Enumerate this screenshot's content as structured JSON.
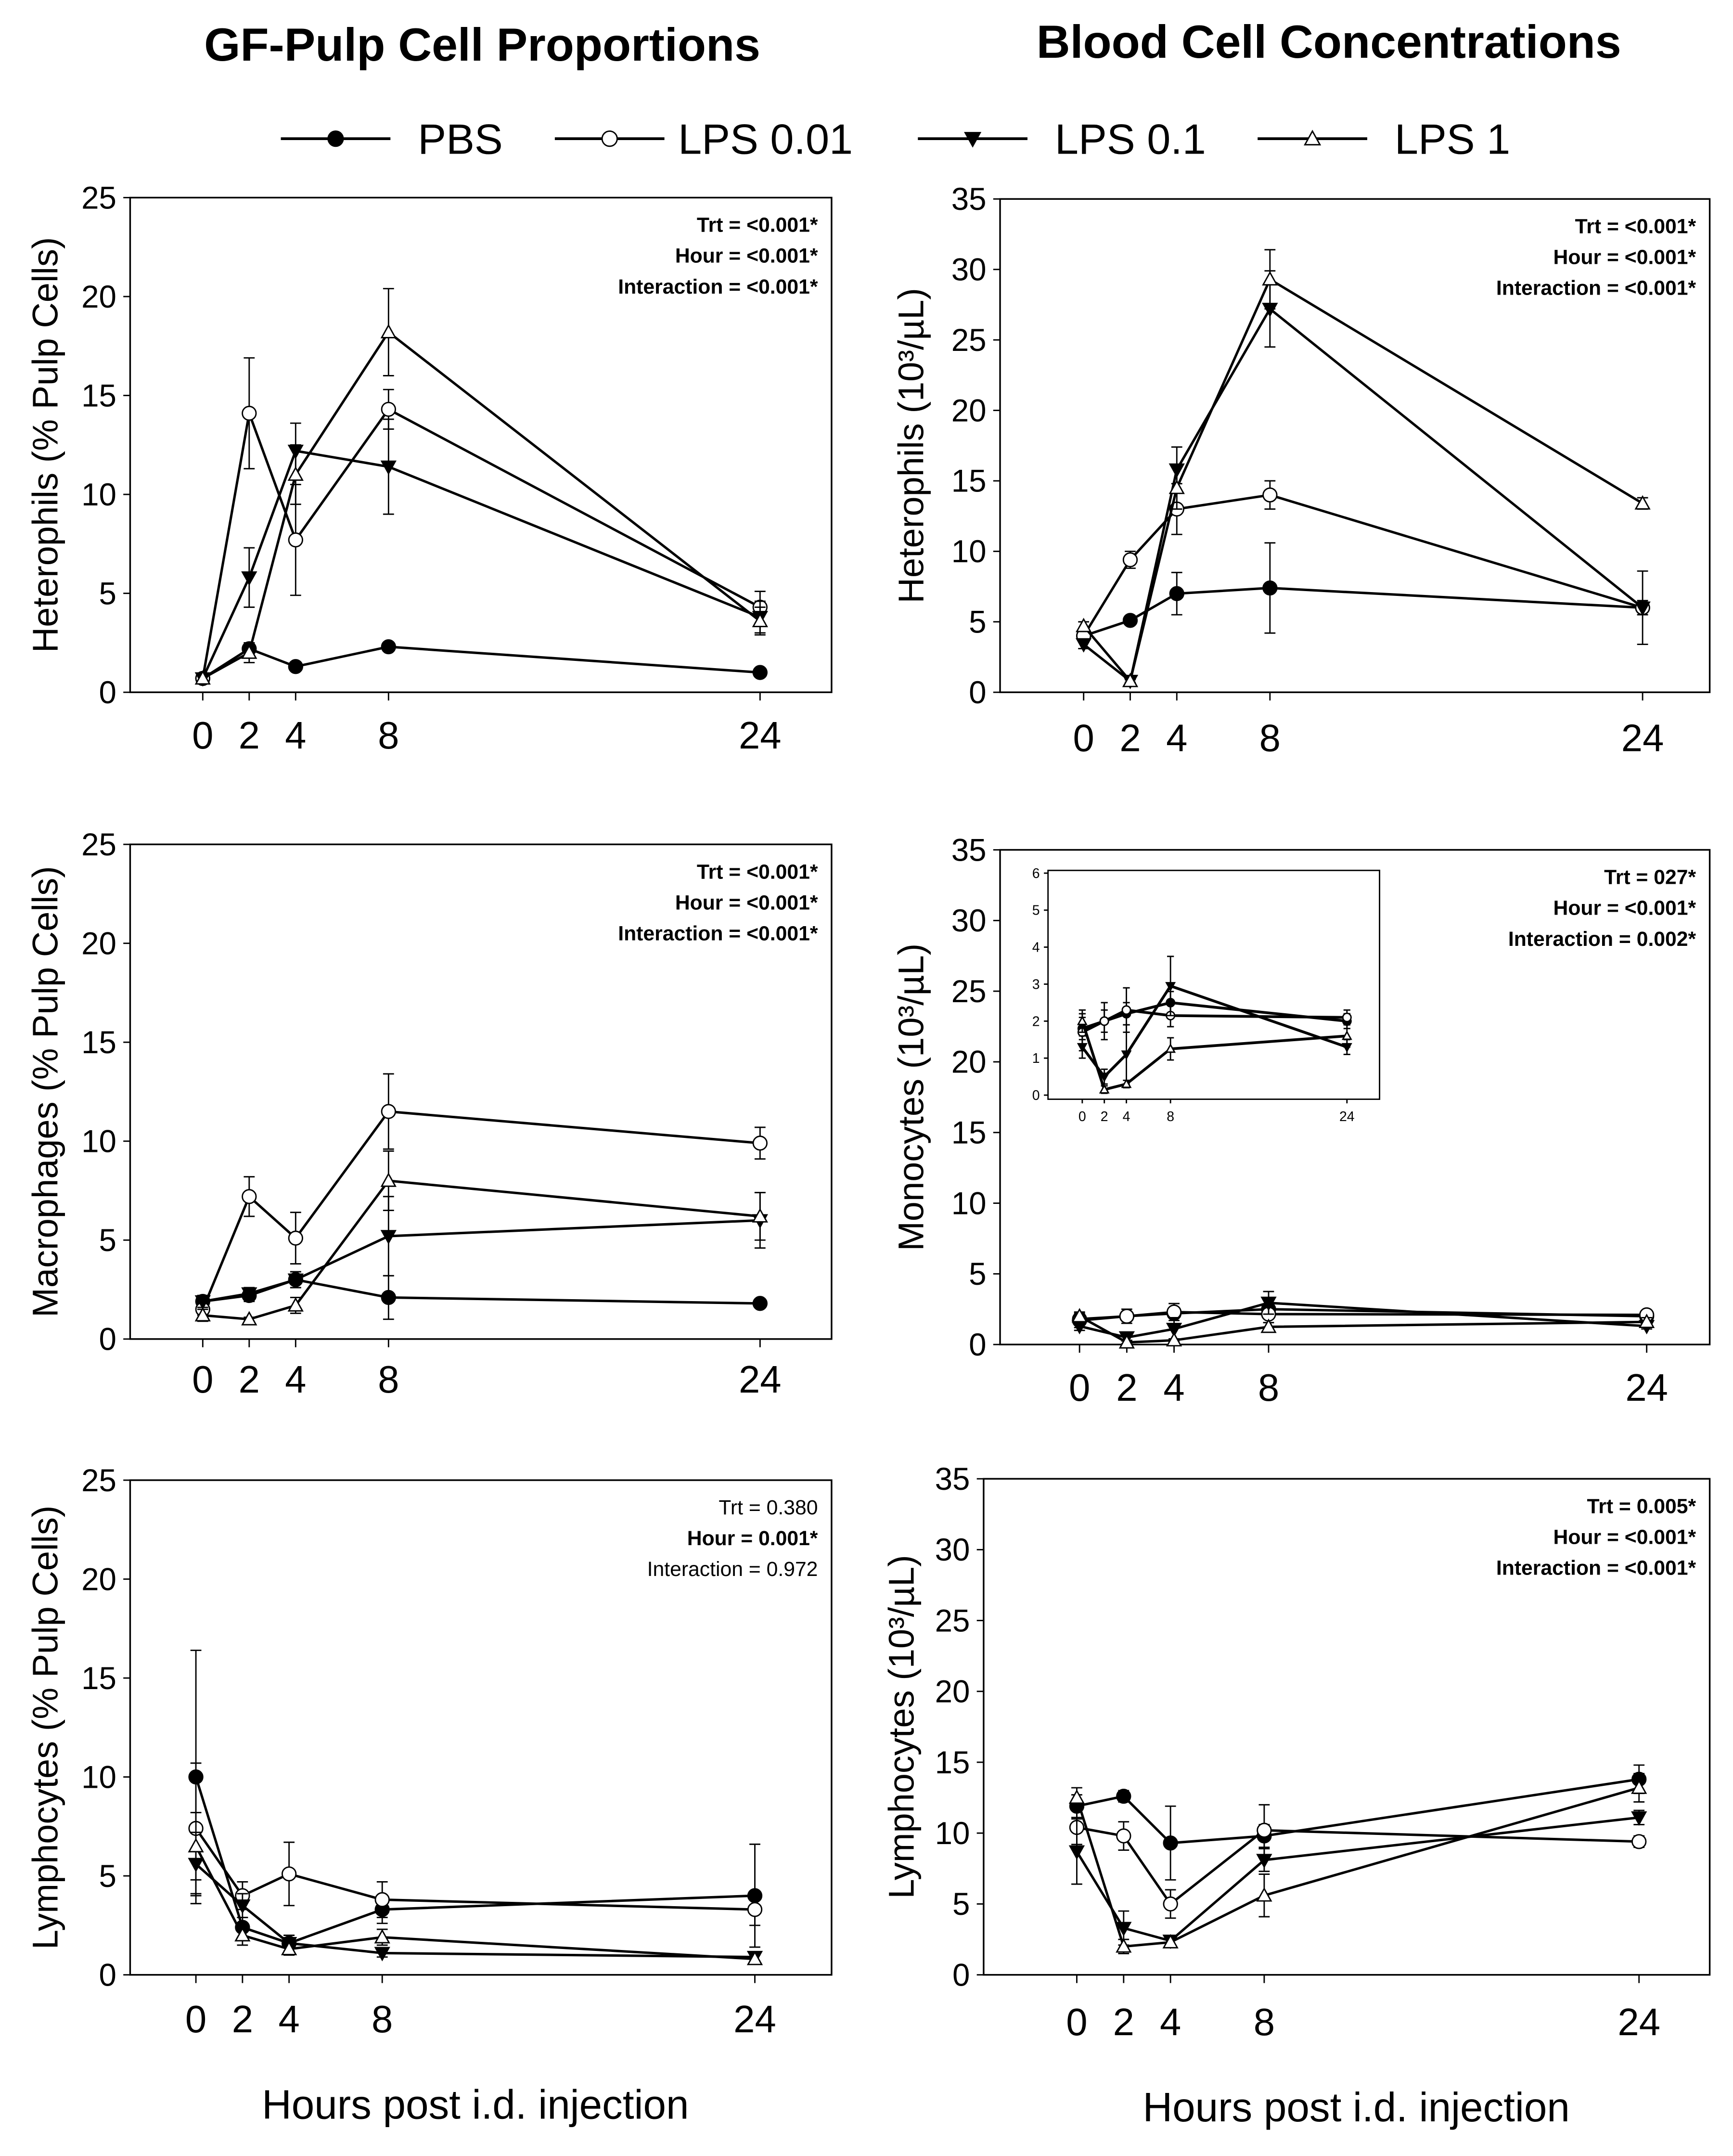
{
  "titles": [
    "GF-Pulp Cell Proportions",
    "Blood Cell Concentrations"
  ],
  "legend": [
    {
      "name": "PBS",
      "marker": "circle-filled"
    },
    {
      "name": "LPS 0.01",
      "marker": "circle-open"
    },
    {
      "name": "LPS 0.1",
      "marker": "triangle-down-filled"
    },
    {
      "name": "LPS 1",
      "marker": "triangle-up-open"
    }
  ],
  "xlabel": "Hours post i.d. injection",
  "chart_data": [
    {
      "type": "line",
      "ylabel": "Heterophils (% Pulp Cells)",
      "ylim": [
        0,
        25
      ],
      "yticks": [
        0,
        5,
        10,
        15,
        20,
        25
      ],
      "x": [
        0,
        2,
        4,
        8,
        24
      ],
      "stats": [
        {
          "text": "Trt = <0.001*",
          "sig": true
        },
        {
          "text": "Hour = <0.001*",
          "sig": true
        },
        {
          "text": "Interaction = <0.001*",
          "sig": true
        }
      ],
      "series": [
        {
          "name": "PBS",
          "values": [
            0.7,
            2.2,
            1.3,
            2.3,
            1.0
          ],
          "err": [
            0.1,
            0.3,
            0.2,
            0.2,
            0.2
          ]
        },
        {
          "name": "LPS 0.01",
          "values": [
            0.7,
            14.1,
            7.7,
            14.3,
            4.3
          ],
          "err": [
            0.1,
            2.8,
            2.8,
            1.0,
            0.8
          ]
        },
        {
          "name": "LPS 0.1",
          "values": [
            0.7,
            5.8,
            12.2,
            11.4,
            3.8
          ],
          "err": [
            0.1,
            1.5,
            1.4,
            2.4,
            0.8
          ]
        },
        {
          "name": "LPS 1",
          "values": [
            0.7,
            2.0,
            11.0,
            18.2,
            3.6
          ],
          "err": [
            0.1,
            0.5,
            1.5,
            2.2,
            0.7
          ]
        }
      ]
    },
    {
      "type": "line",
      "ylabel": "Heterophils (10³/µL)",
      "ylim": [
        0,
        35
      ],
      "yticks": [
        0,
        5,
        10,
        15,
        20,
        25,
        30,
        35
      ],
      "x": [
        0,
        2,
        4,
        8,
        24
      ],
      "stats": [
        {
          "text": "Trt = <0.001*",
          "sig": true
        },
        {
          "text": "Hour = <0.001*",
          "sig": true
        },
        {
          "text": "Interaction = <0.001*",
          "sig": true
        }
      ],
      "series": [
        {
          "name": "PBS",
          "values": [
            4.0,
            5.1,
            7.0,
            7.4,
            6.0
          ],
          "err": [
            0.3,
            0.3,
            1.5,
            3.2,
            2.6
          ]
        },
        {
          "name": "LPS 0.01",
          "values": [
            4.0,
            9.4,
            13.0,
            14.0,
            6.0
          ],
          "err": [
            0.3,
            0.6,
            1.8,
            1.0,
            0.5
          ]
        },
        {
          "name": "LPS 0.1",
          "values": [
            3.4,
            0.8,
            15.8,
            27.2,
            6.0
          ],
          "err": [
            0.3,
            0.1,
            1.6,
            2.7,
            0.5
          ]
        },
        {
          "name": "LPS 1",
          "values": [
            4.7,
            0.8,
            14.5,
            29.3,
            13.4
          ],
          "err": [
            0.3,
            0.1,
            1.5,
            2.1,
            0.4
          ]
        }
      ]
    },
    {
      "type": "line",
      "ylabel": "Macrophages (% Pulp Cells)",
      "ylim": [
        0,
        25
      ],
      "yticks": [
        0,
        5,
        10,
        15,
        20,
        25
      ],
      "x": [
        0,
        2,
        4,
        8,
        24
      ],
      "stats": [
        {
          "text": "Trt = <0.001*",
          "sig": true
        },
        {
          "text": "Hour = <0.001*",
          "sig": true
        },
        {
          "text": "Interaction = <0.001*",
          "sig": true
        }
      ],
      "series": [
        {
          "name": "PBS",
          "values": [
            1.9,
            2.2,
            3.0,
            2.1,
            1.8
          ],
          "err": [
            0.3,
            0.3,
            0.4,
            1.1,
            0.2
          ]
        },
        {
          "name": "LPS 0.01",
          "values": [
            1.5,
            7.2,
            5.1,
            11.5,
            9.9
          ],
          "err": [
            0.3,
            1.0,
            1.3,
            1.9,
            0.8
          ]
        },
        {
          "name": "LPS 0.1",
          "values": [
            1.9,
            2.3,
            3.0,
            5.2,
            6.0
          ],
          "err": [
            0.3,
            0.3,
            0.4,
            2.0,
            1.4
          ]
        },
        {
          "name": "LPS 1",
          "values": [
            1.2,
            1.0,
            1.7,
            8.0,
            6.2
          ],
          "err": [
            0.3,
            0.1,
            0.4,
            1.5,
            1.2
          ]
        }
      ]
    },
    {
      "type": "line",
      "ylabel": "Monocytes (10³/µL)",
      "ylim": [
        0,
        35
      ],
      "yticks": [
        0,
        5,
        10,
        15,
        20,
        25,
        30,
        35
      ],
      "x": [
        0,
        2,
        4,
        8,
        24
      ],
      "stats": [
        {
          "text": "Trt = 027*",
          "sig": true
        },
        {
          "text": "Hour = <0.001*",
          "sig": true
        },
        {
          "text": "Interaction = 0.002*",
          "sig": true
        }
      ],
      "inset": {
        "ylim": [
          0,
          6
        ],
        "yticks": [
          0,
          1,
          2,
          3,
          4,
          5,
          6
        ],
        "xticks": [
          0,
          2,
          4,
          8,
          24
        ]
      },
      "series": [
        {
          "name": "PBS",
          "values": [
            1.8,
            2.0,
            2.2,
            2.5,
            2.0
          ],
          "err": [
            0.3,
            0.3,
            0.3,
            0.3,
            0.2
          ]
        },
        {
          "name": "LPS 0.01",
          "values": [
            1.7,
            2.0,
            2.3,
            2.15,
            2.1
          ],
          "err": [
            0.5,
            0.5,
            0.6,
            0.3,
            0.2
          ]
        },
        {
          "name": "LPS 0.1",
          "values": [
            1.3,
            0.5,
            1.1,
            2.95,
            1.3
          ],
          "err": [
            0.3,
            0.2,
            0.8,
            0.8,
            0.2
          ]
        },
        {
          "name": "LPS 1",
          "values": [
            2.0,
            0.15,
            0.3,
            1.25,
            1.6
          ],
          "err": [
            0.3,
            0.1,
            0.1,
            0.3,
            0.3
          ]
        }
      ]
    },
    {
      "type": "line",
      "ylabel": "Lymphocytes (% Pulp Cells)",
      "ylim": [
        0,
        25
      ],
      "yticks": [
        0,
        5,
        10,
        15,
        20,
        25
      ],
      "x": [
        0,
        2,
        4,
        8,
        24
      ],
      "stats": [
        {
          "text": "Trt = 0.380",
          "sig": false
        },
        {
          "text": "Hour = 0.001*",
          "sig": true
        },
        {
          "text": "Interaction = 0.972",
          "sig": false
        }
      ],
      "series": [
        {
          "name": "PBS",
          "values": [
            10.0,
            2.4,
            1.6,
            3.3,
            4.0
          ],
          "err": [
            6.4,
            0.5,
            0.4,
            0.7,
            2.6
          ]
        },
        {
          "name": "LPS 0.01",
          "values": [
            7.4,
            4.0,
            5.1,
            3.8,
            3.3
          ],
          "err": [
            3.3,
            0.7,
            1.6,
            0.9,
            0.8
          ]
        },
        {
          "name": "LPS 0.1",
          "values": [
            5.6,
            3.5,
            1.6,
            1.1,
            0.9
          ],
          "err": [
            1.6,
            0.6,
            0.4,
            0.2,
            0.2
          ]
        },
        {
          "name": "LPS 1",
          "values": [
            6.5,
            2.0,
            1.3,
            1.9,
            0.8
          ],
          "err": [
            1.7,
            0.5,
            0.3,
            0.4,
            0.2
          ]
        }
      ]
    },
    {
      "type": "line",
      "ylabel": "Lymphocytes (10³/µL)",
      "ylim": [
        0,
        35
      ],
      "yticks": [
        0,
        5,
        10,
        15,
        20,
        25,
        30,
        35
      ],
      "x": [
        0,
        2,
        4,
        8,
        24
      ],
      "stats": [
        {
          "text": "Trt = 0.005*",
          "sig": true
        },
        {
          "text": "Hour = <0.001*",
          "sig": true
        },
        {
          "text": "Interaction = <0.001*",
          "sig": true
        }
      ],
      "series": [
        {
          "name": "PBS",
          "values": [
            11.9,
            12.6,
            9.3,
            9.8,
            13.8
          ],
          "err": [
            0.8,
            0.4,
            2.6,
            0.8,
            1.0
          ]
        },
        {
          "name": "LPS 0.01",
          "values": [
            10.4,
            9.8,
            5.0,
            10.2,
            9.4
          ],
          "err": [
            1.2,
            1.0,
            1.0,
            1.8,
            0.4
          ]
        },
        {
          "name": "LPS 0.1",
          "values": [
            8.7,
            3.3,
            2.4,
            8.1,
            11.1
          ],
          "err": [
            2.3,
            1.2,
            0.3,
            0.8,
            0.5
          ]
        },
        {
          "name": "LPS 1",
          "values": [
            12.5,
            2.0,
            2.3,
            5.6,
            13.2
          ],
          "err": [
            0.7,
            0.5,
            0.2,
            1.5,
            1.0
          ]
        }
      ]
    }
  ]
}
